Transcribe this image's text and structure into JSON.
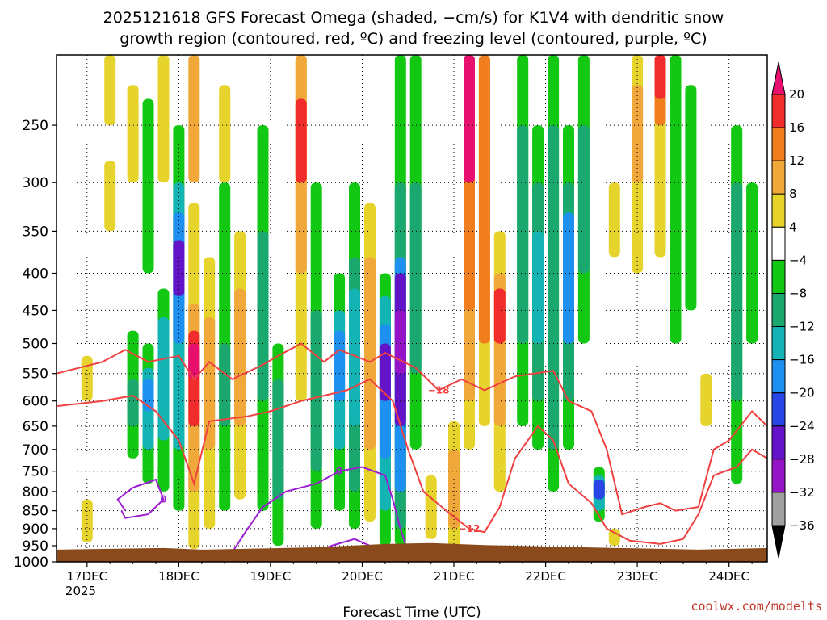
{
  "title_line1": "2025121618 GFS Forecast Omega (shaded, −cm/s) for K1V4 with dendritic snow",
  "title_line2": "growth region (contoured, red, ºC) and freezing level (contoured, purple, ºC)",
  "credit": "coolwx.com/modelts",
  "chart_data": {
    "type": "heatmap",
    "title": "2025121618 GFS Forecast Omega (shaded, −cm/s) for K1V4 with dendritic snow growth region (contoured, red, ºC) and freezing level (contoured, purple, ºC)",
    "xlabel": "Forecast Time (UTC)",
    "ylabel": "",
    "x_ticks": [
      "17DEC",
      "18DEC",
      "19DEC",
      "20DEC",
      "21DEC",
      "22DEC",
      "23DEC",
      "24DEC"
    ],
    "x_year_label": "2025",
    "y_ticks": [
      250,
      300,
      350,
      400,
      450,
      500,
      550,
      600,
      650,
      700,
      750,
      800,
      850,
      900,
      950,
      1000
    ],
    "y_scale": "log-pressure (inverted)",
    "ylim": [
      1000,
      200
    ],
    "xlim_hours": [
      -8,
      178
    ],
    "grid": true,
    "colorbar": {
      "ticks": [
        "20",
        "16",
        "12",
        "8",
        "4",
        "−4",
        "−8",
        "−12",
        "−16",
        "−20",
        "−24",
        "−28",
        "−32",
        "−36"
      ],
      "bins": [
        {
          "lo": 20,
          "hi": 24,
          "color": "#e8106e"
        },
        {
          "lo": 16,
          "hi": 20,
          "color": "#f02c2c"
        },
        {
          "lo": 12,
          "hi": 16,
          "color": "#f07d1e"
        },
        {
          "lo": 8,
          "hi": 12,
          "color": "#f0a83a"
        },
        {
          "lo": 4,
          "hi": 8,
          "color": "#e6d42c"
        },
        {
          "lo": -4,
          "hi": 4,
          "color": "#ffffff"
        },
        {
          "lo": -8,
          "hi": -4,
          "color": "#12c812"
        },
        {
          "lo": -12,
          "hi": -8,
          "color": "#1aa86e"
        },
        {
          "lo": -16,
          "hi": -12,
          "color": "#14b4b4"
        },
        {
          "lo": -20,
          "hi": -16,
          "color": "#1e90f0"
        },
        {
          "lo": -24,
          "hi": -20,
          "color": "#2846e6"
        },
        {
          "lo": -28,
          "hi": -24,
          "color": "#6414c8"
        },
        {
          "lo": -32,
          "hi": -28,
          "color": "#9614c8"
        },
        {
          "lo": -36,
          "hi": -32,
          "color": "#a0a0a0"
        },
        {
          "lo": -40,
          "hi": -36,
          "color": "#000000"
        }
      ]
    },
    "columns": [
      {
        "h": 0,
        "segs": [
          [
            940,
            820,
            6
          ],
          [
            600,
            520,
            6
          ]
        ]
      },
      {
        "h": 6,
        "segs": [
          [
            250,
            200,
            6
          ],
          [
            350,
            280,
            6
          ]
        ]
      },
      {
        "h": 12,
        "segs": [
          [
            720,
            480,
            -6
          ],
          [
            650,
            560,
            -10
          ],
          [
            300,
            220,
            6
          ]
        ]
      },
      {
        "h": 16,
        "segs": [
          [
            780,
            500,
            -6
          ],
          [
            700,
            540,
            -14
          ],
          [
            620,
            560,
            -20
          ],
          [
            400,
            230,
            -6
          ]
        ]
      },
      {
        "h": 20,
        "segs": [
          [
            800,
            420,
            -6
          ],
          [
            680,
            460,
            -14
          ],
          [
            300,
            200,
            6
          ]
        ]
      },
      {
        "h": 24,
        "segs": [
          [
            850,
            250,
            -6
          ],
          [
            700,
            300,
            -14
          ],
          [
            500,
            330,
            -20
          ],
          [
            430,
            360,
            -26
          ]
        ]
      },
      {
        "h": 28,
        "segs": [
          [
            960,
            320,
            6
          ],
          [
            800,
            440,
            10
          ],
          [
            650,
            480,
            18
          ],
          [
            560,
            500,
            22
          ],
          [
            300,
            200,
            10
          ]
        ]
      },
      {
        "h": 32,
        "segs": [
          [
            900,
            380,
            6
          ],
          [
            700,
            460,
            10
          ]
        ]
      },
      {
        "h": 36,
        "segs": [
          [
            850,
            300,
            -6
          ],
          [
            650,
            500,
            -10
          ],
          [
            300,
            220,
            6
          ]
        ]
      },
      {
        "h": 40,
        "segs": [
          [
            820,
            350,
            6
          ],
          [
            650,
            420,
            10
          ]
        ]
      },
      {
        "h": 46,
        "segs": [
          [
            850,
            250,
            -6
          ],
          [
            600,
            350,
            -10
          ]
        ]
      },
      {
        "h": 50,
        "segs": [
          [
            950,
            500,
            -6
          ],
          [
            820,
            560,
            -10
          ]
        ]
      },
      {
        "h": 56,
        "segs": [
          [
            600,
            200,
            6
          ],
          [
            400,
            200,
            10
          ],
          [
            300,
            230,
            16
          ]
        ]
      },
      {
        "h": 60,
        "segs": [
          [
            900,
            300,
            -6
          ],
          [
            750,
            450,
            -12
          ]
        ]
      },
      {
        "h": 66,
        "segs": [
          [
            850,
            400,
            -6
          ],
          [
            700,
            450,
            -14
          ],
          [
            600,
            480,
            -18
          ]
        ]
      },
      {
        "h": 70,
        "segs": [
          [
            900,
            300,
            -6
          ],
          [
            800,
            380,
            -12
          ],
          [
            650,
            420,
            -16
          ]
        ]
      },
      {
        "h": 74,
        "segs": [
          [
            880,
            320,
            6
          ],
          [
            700,
            380,
            10
          ]
        ]
      },
      {
        "h": 78,
        "segs": [
          [
            950,
            400,
            -6
          ],
          [
            850,
            430,
            -14
          ],
          [
            720,
            470,
            -20
          ],
          [
            600,
            500,
            -26
          ]
        ]
      },
      {
        "h": 82,
        "segs": [
          [
            950,
            200,
            -6
          ],
          [
            900,
            300,
            -12
          ],
          [
            800,
            380,
            -18
          ],
          [
            650,
            400,
            -26
          ],
          [
            550,
            450,
            -30
          ]
        ]
      },
      {
        "h": 86,
        "segs": [
          [
            700,
            200,
            -6
          ],
          [
            550,
            300,
            -10
          ]
        ]
      },
      {
        "h": 90,
        "segs": [
          [
            930,
            760,
            6
          ]
        ]
      },
      {
        "h": 96,
        "segs": [
          [
            960,
            640,
            6
          ],
          [
            900,
            700,
            10
          ]
        ]
      },
      {
        "h": 100,
        "segs": [
          [
            700,
            200,
            6
          ],
          [
            600,
            200,
            10
          ],
          [
            450,
            200,
            14
          ],
          [
            300,
            200,
            20
          ]
        ]
      },
      {
        "h": 104,
        "segs": [
          [
            650,
            200,
            6
          ],
          [
            500,
            200,
            12
          ]
        ]
      },
      {
        "h": 108,
        "segs": [
          [
            800,
            350,
            6
          ],
          [
            650,
            400,
            10
          ],
          [
            500,
            420,
            16
          ]
        ]
      },
      {
        "h": 114,
        "segs": [
          [
            650,
            200,
            -6
          ],
          [
            500,
            250,
            -10
          ]
        ]
      },
      {
        "h": 118,
        "segs": [
          [
            700,
            250,
            -6
          ],
          [
            600,
            300,
            -12
          ],
          [
            500,
            350,
            -16
          ]
        ]
      },
      {
        "h": 122,
        "segs": [
          [
            800,
            200,
            -6
          ],
          [
            700,
            250,
            -10
          ]
        ]
      },
      {
        "h": 126,
        "segs": [
          [
            700,
            250,
            -6
          ],
          [
            600,
            300,
            -12
          ],
          [
            500,
            330,
            -18
          ]
        ]
      },
      {
        "h": 130,
        "segs": [
          [
            500,
            200,
            -6
          ],
          [
            400,
            250,
            -10
          ]
        ]
      },
      {
        "h": 134,
        "segs": [
          [
            880,
            740,
            -6
          ],
          [
            850,
            760,
            -14
          ],
          [
            820,
            770,
            -22
          ]
        ]
      },
      {
        "h": 138,
        "segs": [
          [
            380,
            300,
            6
          ],
          [
            950,
            900,
            6
          ]
        ]
      },
      {
        "h": 144,
        "segs": [
          [
            400,
            200,
            6
          ],
          [
            300,
            220,
            10
          ]
        ]
      },
      {
        "h": 150,
        "segs": [
          [
            380,
            200,
            6
          ],
          [
            250,
            200,
            12
          ],
          [
            230,
            200,
            18
          ]
        ]
      },
      {
        "h": 154,
        "segs": [
          [
            500,
            200,
            -6
          ]
        ]
      },
      {
        "h": 158,
        "segs": [
          [
            450,
            220,
            -6
          ]
        ]
      },
      {
        "h": 162,
        "segs": [
          [
            650,
            550,
            6
          ]
        ]
      },
      {
        "h": 170,
        "segs": [
          [
            780,
            250,
            -6
          ],
          [
            600,
            300,
            -10
          ]
        ]
      },
      {
        "h": 174,
        "segs": [
          [
            500,
            300,
            -6
          ]
        ]
      }
    ],
    "dgz_contours": [
      {
        "label": "−18",
        "pts": [
          [
            -8,
            550
          ],
          [
            4,
            530
          ],
          [
            10,
            510
          ],
          [
            16,
            530
          ],
          [
            24,
            520
          ],
          [
            28,
            560
          ],
          [
            32,
            530
          ],
          [
            38,
            560
          ],
          [
            46,
            535
          ],
          [
            50,
            520
          ],
          [
            56,
            500
          ],
          [
            62,
            530
          ],
          [
            66,
            510
          ],
          [
            74,
            530
          ],
          [
            78,
            515
          ],
          [
            86,
            540
          ],
          [
            92,
            580
          ],
          [
            98,
            560
          ],
          [
            104,
            580
          ],
          [
            112,
            555
          ],
          [
            122,
            545
          ],
          [
            126,
            600
          ],
          [
            132,
            620
          ],
          [
            136,
            700
          ],
          [
            140,
            860
          ],
          [
            146,
            840
          ],
          [
            150,
            830
          ],
          [
            154,
            850
          ],
          [
            160,
            840
          ],
          [
            164,
            700
          ],
          [
            168,
            680
          ],
          [
            174,
            620
          ],
          [
            178,
            650
          ]
        ]
      },
      {
        "label": "−12",
        "pts": [
          [
            -8,
            610
          ],
          [
            4,
            600
          ],
          [
            12,
            590
          ],
          [
            18,
            620
          ],
          [
            24,
            680
          ],
          [
            28,
            780
          ],
          [
            32,
            640
          ],
          [
            42,
            630
          ],
          [
            48,
            620
          ],
          [
            56,
            600
          ],
          [
            62,
            590
          ],
          [
            68,
            580
          ],
          [
            74,
            560
          ],
          [
            80,
            600
          ],
          [
            84,
            700
          ],
          [
            88,
            800
          ],
          [
            94,
            850
          ],
          [
            100,
            900
          ],
          [
            104,
            910
          ],
          [
            108,
            840
          ],
          [
            112,
            720
          ],
          [
            118,
            650
          ],
          [
            122,
            680
          ],
          [
            126,
            780
          ],
          [
            132,
            830
          ],
          [
            136,
            900
          ],
          [
            142,
            935
          ],
          [
            150,
            945
          ],
          [
            156,
            930
          ],
          [
            160,
            860
          ],
          [
            164,
            760
          ],
          [
            170,
            740
          ],
          [
            174,
            700
          ],
          [
            178,
            720
          ]
        ]
      }
    ],
    "freezing_contours": [
      {
        "label": "0",
        "pts": [
          [
            10,
            850
          ],
          [
            8,
            820
          ],
          [
            12,
            790
          ],
          [
            18,
            770
          ],
          [
            20,
            820
          ],
          [
            16,
            860
          ],
          [
            10,
            870
          ],
          [
            9,
            850
          ]
        ]
      },
      {
        "label": "0",
        "pts": [
          [
            38,
            970
          ],
          [
            42,
            900
          ],
          [
            46,
            840
          ],
          [
            52,
            800
          ],
          [
            60,
            780
          ],
          [
            66,
            750
          ],
          [
            72,
            740
          ],
          [
            78,
            760
          ],
          [
            80,
            820
          ],
          [
            82,
            900
          ],
          [
            84,
            970
          ]
        ]
      },
      {
        "label": "",
        "pts": [
          [
            60,
            970
          ],
          [
            64,
            950
          ],
          [
            70,
            930
          ],
          [
            74,
            950
          ],
          [
            76,
            970
          ]
        ]
      }
    ],
    "terrain_surface_hpa": [
      [
        -8,
        962
      ],
      [
        20,
        957
      ],
      [
        30,
        962
      ],
      [
        60,
        955
      ],
      [
        78,
        945
      ],
      [
        90,
        942
      ],
      [
        104,
        948
      ],
      [
        130,
        955
      ],
      [
        160,
        962
      ],
      [
        178,
        957
      ]
    ]
  }
}
